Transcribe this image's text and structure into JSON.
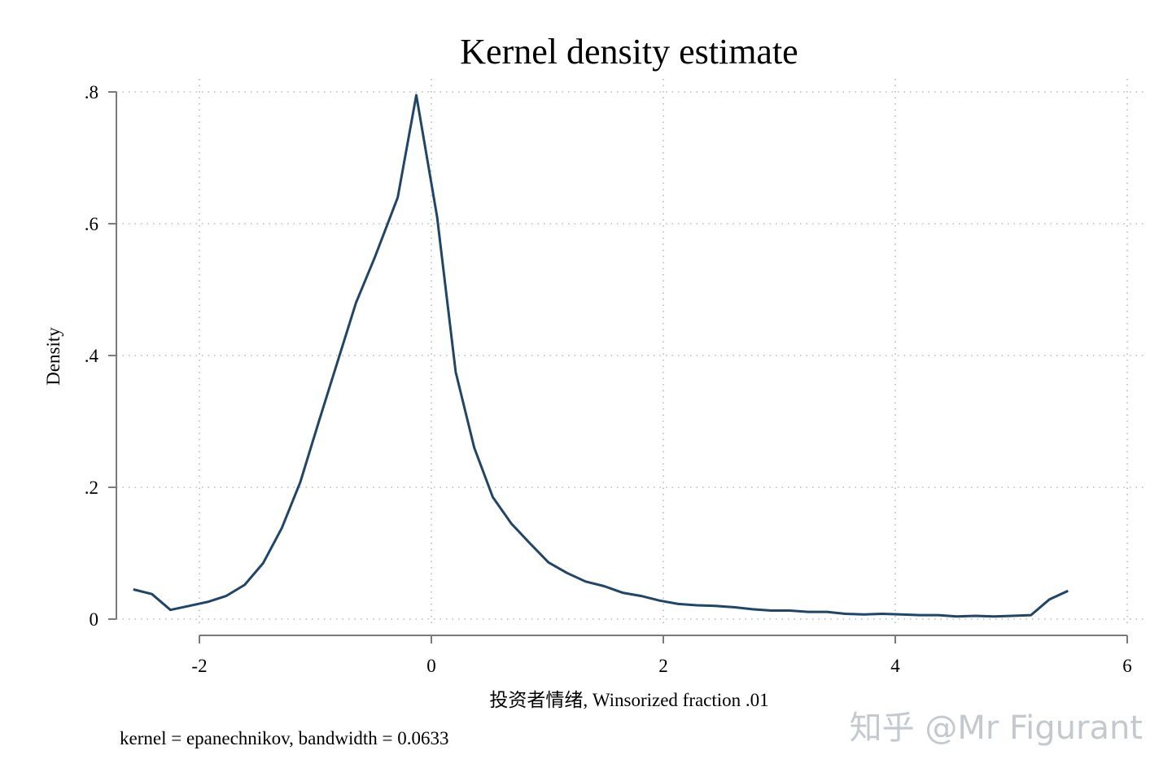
{
  "chart_data": {
    "type": "line",
    "title": "Kernel density estimate",
    "xlabel": "投资者情绪, Winsorized fraction .01",
    "ylabel": "Density",
    "note": "kernel = epanechnikov, bandwidth = 0.0633",
    "xlim": [
      -2.65,
      6
    ],
    "ylim": [
      0,
      0.8
    ],
    "x_ticks": [
      -2,
      0,
      2,
      4,
      6
    ],
    "x_tick_labels": [
      "-2",
      "0",
      "2",
      "4",
      "6"
    ],
    "y_ticks": [
      0,
      0.2,
      0.4,
      0.6,
      0.8
    ],
    "y_tick_labels": [
      "0",
      ".2",
      ".4",
      ".6",
      ".8"
    ],
    "grid": true,
    "series": [
      {
        "color": "#1f4569",
        "x": [
          -2.57,
          -2.41,
          -2.25,
          -2.09,
          -1.93,
          -1.77,
          -1.61,
          -1.45,
          -1.29,
          -1.13,
          -0.97,
          -0.81,
          -0.65,
          -0.49,
          -0.29,
          -0.13,
          0.05,
          0.21,
          0.37,
          0.53,
          0.69,
          0.85,
          1.01,
          1.17,
          1.33,
          1.49,
          1.65,
          1.81,
          1.97,
          2.13,
          2.29,
          2.45,
          2.61,
          2.77,
          2.93,
          3.09,
          3.25,
          3.41,
          3.57,
          3.73,
          3.89,
          4.05,
          4.21,
          4.37,
          4.53,
          4.69,
          4.85,
          5.01,
          5.17,
          5.33,
          5.49
        ],
        "y": [
          0.045,
          0.038,
          0.014,
          0.02,
          0.026,
          0.035,
          0.052,
          0.085,
          0.138,
          0.208,
          0.3,
          0.39,
          0.48,
          0.548,
          0.64,
          0.795,
          0.61,
          0.375,
          0.26,
          0.185,
          0.145,
          0.115,
          0.086,
          0.07,
          0.057,
          0.05,
          0.04,
          0.035,
          0.028,
          0.023,
          0.021,
          0.02,
          0.018,
          0.015,
          0.013,
          0.013,
          0.011,
          0.011,
          0.008,
          0.007,
          0.008,
          0.007,
          0.006,
          0.006,
          0.004,
          0.005,
          0.004,
          0.005,
          0.006,
          0.03,
          0.043
        ]
      }
    ]
  },
  "watermark": "知乎 @Mr Figurant"
}
